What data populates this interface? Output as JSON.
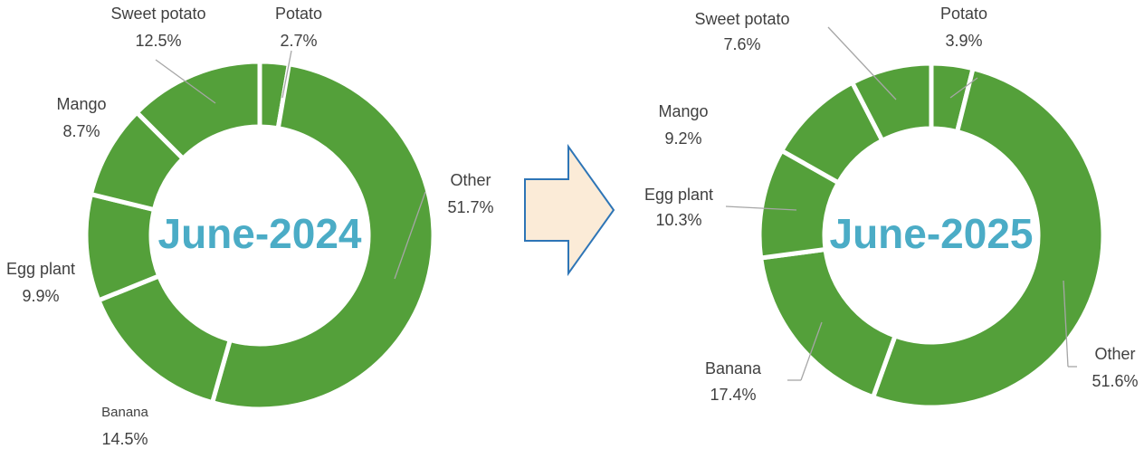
{
  "chart_data": [
    {
      "type": "donut",
      "title": "June-2024",
      "color": "#54a03a",
      "categories": [
        "Potato",
        "Other",
        "Banana",
        "Egg plant",
        "Mango",
        "Sweet potato"
      ],
      "values": [
        2.7,
        51.7,
        14.5,
        9.9,
        8.7,
        12.5
      ],
      "value_labels": [
        "2.7%",
        "51.7%",
        "14.5%",
        "9.9%",
        "8.7%",
        "12.5%"
      ]
    },
    {
      "type": "donut",
      "title": "June-2025",
      "color": "#54a03a",
      "categories": [
        "Potato",
        "Other",
        "Banana",
        "Egg plant",
        "Mango",
        "Sweet potato"
      ],
      "values": [
        3.9,
        51.6,
        17.4,
        10.3,
        9.2,
        7.6
      ],
      "value_labels": [
        "3.9%",
        "51.6%",
        "17.4%",
        "10.3%",
        "9.2%",
        "7.6%"
      ]
    }
  ]
}
